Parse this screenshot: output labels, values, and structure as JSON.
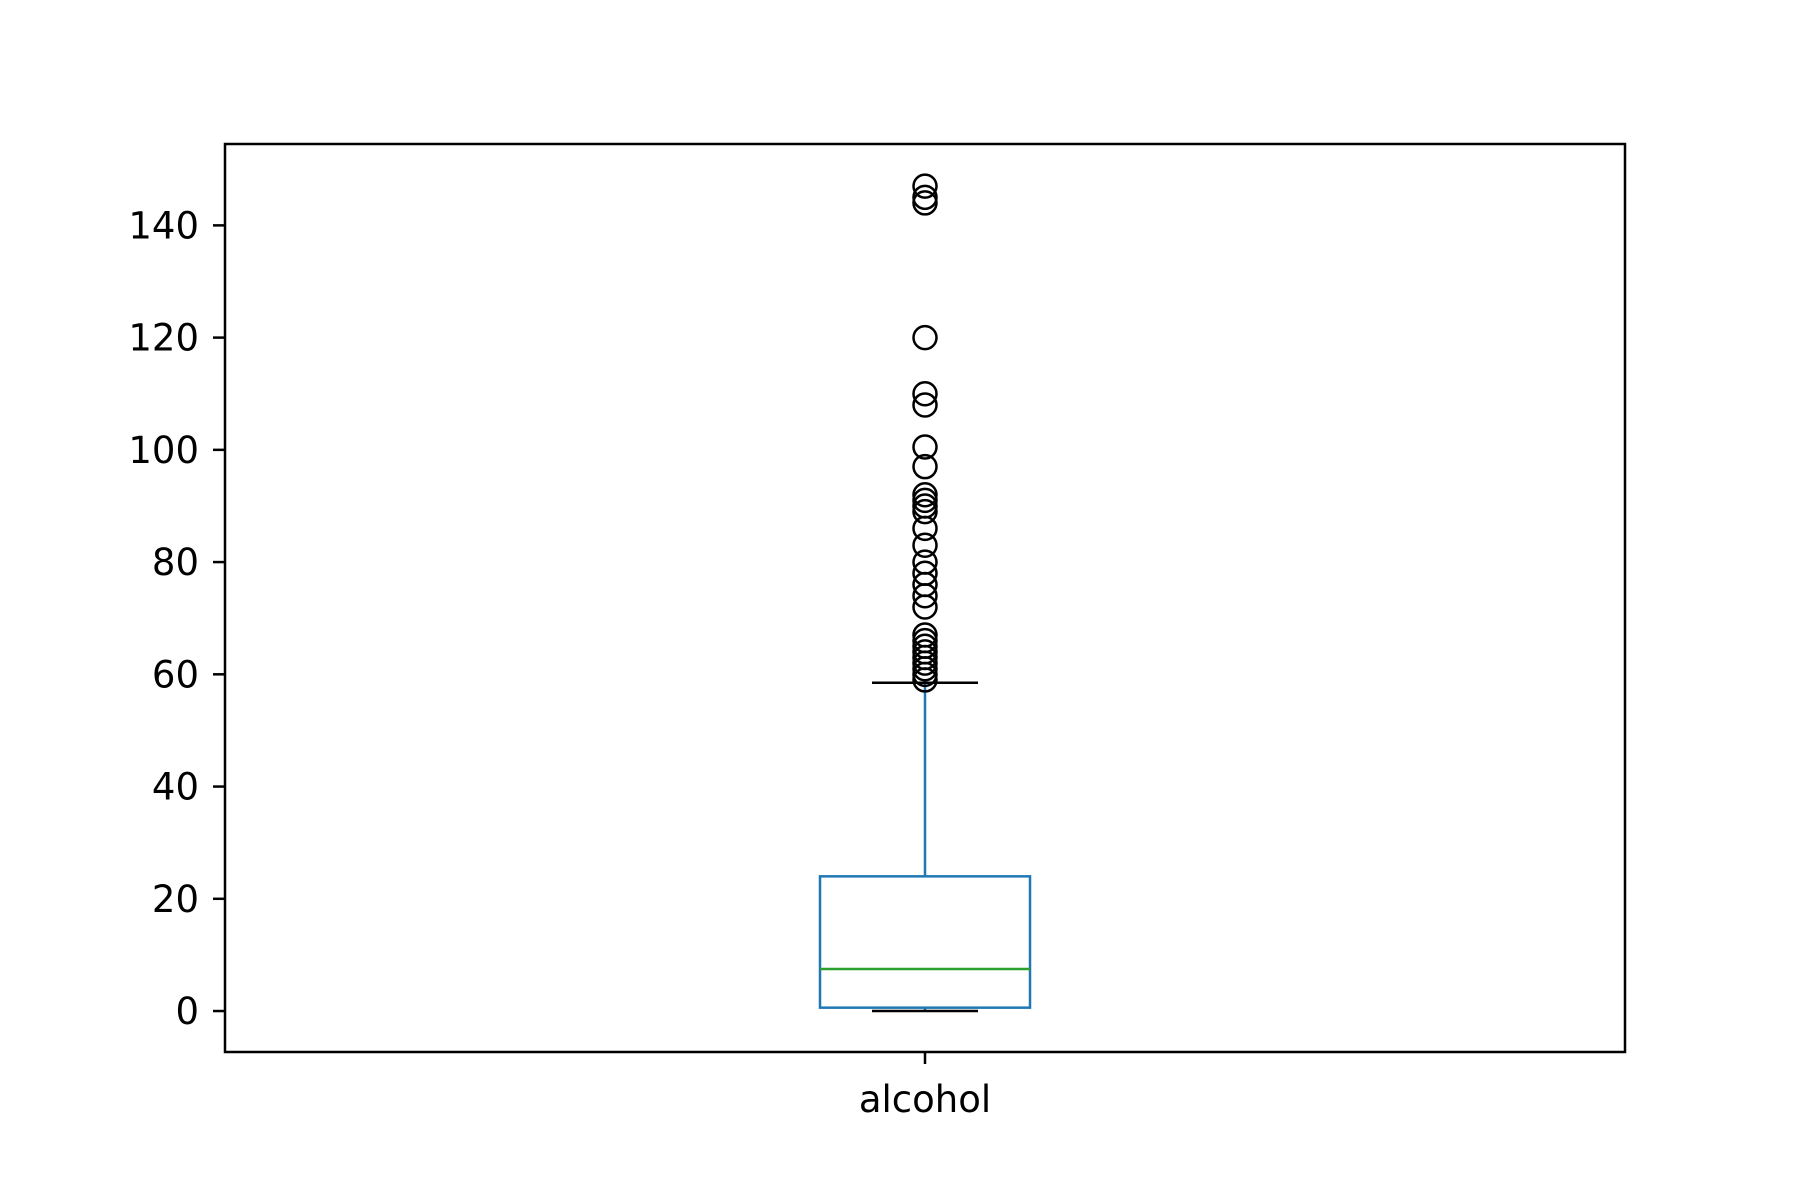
{
  "chart_data": {
    "type": "box",
    "title": "",
    "xlabel": "",
    "ylabel": "",
    "categories": [
      "alcohol"
    ],
    "ylim": [
      -7.3,
      154.5
    ],
    "yticks": [
      0,
      20,
      40,
      60,
      80,
      100,
      120,
      140
    ],
    "grid": false,
    "legend": "none",
    "boxes": [
      {
        "label": "alcohol",
        "whisker_low": 0,
        "q1": 0.6,
        "median": 7.5,
        "q3": 24,
        "whisker_high": 58.5,
        "outliers": [
          59,
          60,
          61,
          62,
          63,
          64,
          65,
          66,
          67,
          72,
          74,
          76,
          78,
          80,
          83,
          86,
          89,
          90,
          91,
          92,
          97,
          100.5,
          108,
          110,
          120,
          144,
          145,
          147
        ]
      }
    ],
    "colors": {
      "box": "#1f77b4",
      "median": "#2ca02c",
      "caps": "#000000",
      "fliers": "#000000",
      "axes": "#000000"
    }
  }
}
